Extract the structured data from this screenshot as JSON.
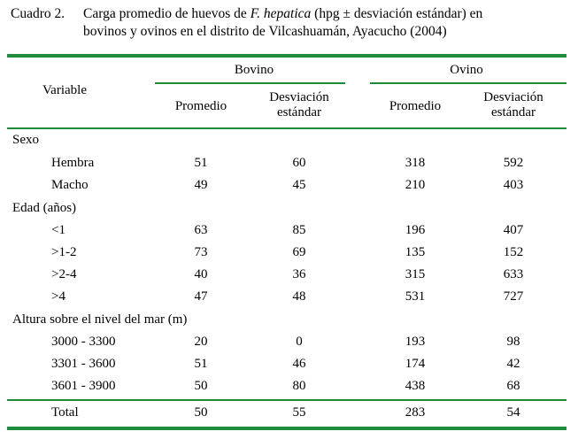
{
  "caption": {
    "label": "Cuadro 2.",
    "text_before": "Carga promedio de huevos de ",
    "italic": "F. hepatica",
    "text_after": " (hpg ± desviación estándar) en",
    "line2": "bovinos y ovinos en el distrito de Vilcashuamán, Ayacucho (2004)"
  },
  "table": {
    "variable_header": "Variable",
    "groups": [
      "Bovino",
      "Ovino"
    ],
    "subheaders": {
      "mean": "Promedio",
      "sd_line1": "Desviación",
      "sd_line2": "estándar"
    },
    "sections": [
      {
        "title": "Sexo",
        "rows": [
          {
            "label": "Hembra",
            "values": [
              "51",
              "60",
              "318",
              "592"
            ]
          },
          {
            "label": "Macho",
            "values": [
              "49",
              "45",
              "210",
              "403"
            ]
          }
        ]
      },
      {
        "title": "Edad (años)",
        "rows": [
          {
            "label": "<1",
            "values": [
              "63",
              "85",
              "196",
              "407"
            ]
          },
          {
            "label": ">1-2",
            "values": [
              "73",
              "69",
              "135",
              "152"
            ]
          },
          {
            "label": ">2-4",
            "values": [
              "40",
              "36",
              "315",
              "633"
            ]
          },
          {
            "label": ">4",
            "values": [
              "47",
              "48",
              "531",
              "727"
            ]
          }
        ]
      },
      {
        "title": "Altura sobre el nivel del mar (m)",
        "rows": [
          {
            "label": "3000 - 3300",
            "values": [
              "20",
              "0",
              "193",
              "98"
            ]
          },
          {
            "label": "3301 - 3600",
            "values": [
              "51",
              "46",
              "174",
              "42"
            ]
          },
          {
            "label": "3601 - 3900",
            "values": [
              "50",
              "80",
              "438",
              "68"
            ]
          }
        ]
      }
    ],
    "total": {
      "label": "Total",
      "values": [
        "50",
        "55",
        "283",
        "54"
      ]
    }
  },
  "colors": {
    "rule": "#1f8a3a",
    "text": "#000000"
  }
}
